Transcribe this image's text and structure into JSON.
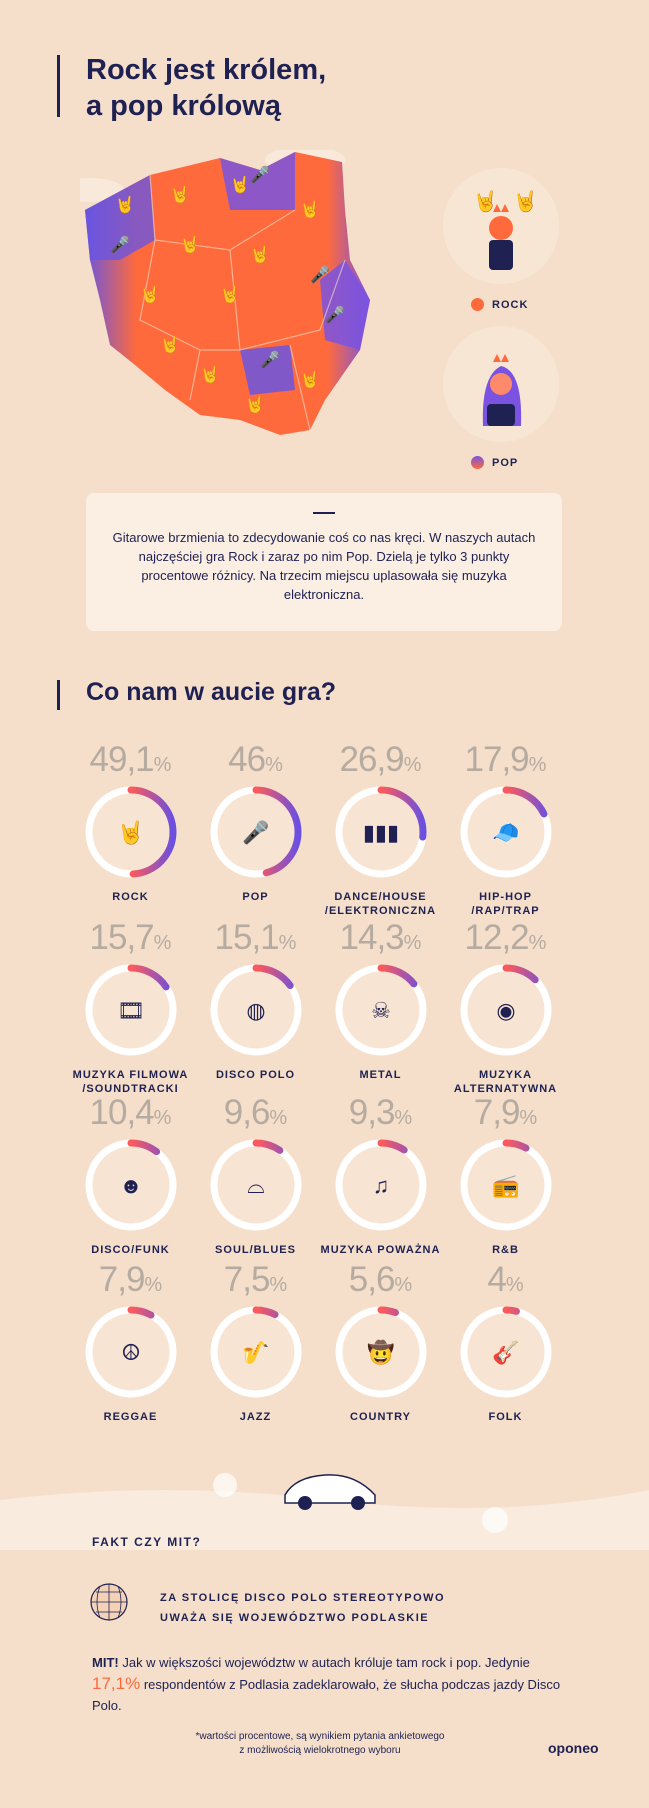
{
  "header": {
    "title_line1": "Rock jest królem,",
    "title_line2": "a pop królową"
  },
  "map_legend": [
    {
      "label": "ROCK",
      "color": "#ff6a3d",
      "icon": "rock-hands-icon"
    },
    {
      "label": "POP",
      "color": "#7a54e0",
      "icon": "pop-singer-icon"
    }
  ],
  "info_text": "Gitarowe brzmienia to zdecydowanie coś co nas kręci. W naszych autach najczęściej gra Rock i zaraz po nim Pop. Dzielą je tylko 3 punkty procentowe różnicy. Na trzecim miejscu uplasowała się muzyka elektroniczna.",
  "section_title": "Co nam w aucie gra?",
  "chart_data": {
    "type": "donut-grid",
    "unit": "%",
    "items": [
      {
        "label": "ROCK",
        "value": 49.1,
        "display": "49,1",
        "icon": "rock-hand-icon"
      },
      {
        "label": "POP",
        "value": 46,
        "display": "46",
        "icon": "microphone-icon"
      },
      {
        "label": "DANCE/HOUSE /ELEKTRONICZNA",
        "value": 26.9,
        "display": "26,9",
        "icon": "sound-wave-icon"
      },
      {
        "label": "HIP-HOP /RAP/TRAP",
        "value": 17.9,
        "display": "17,9",
        "icon": "rapper-icon"
      },
      {
        "label": "MUZYKA FILMOWA /SOUNDTRACKI",
        "value": 15.7,
        "display": "15,7",
        "icon": "film-strip-icon"
      },
      {
        "label": "DISCO POLO",
        "value": 15.1,
        "display": "15,1",
        "icon": "disco-ball-icon"
      },
      {
        "label": "METAL",
        "value": 14.3,
        "display": "14,3",
        "icon": "skull-icon"
      },
      {
        "label": "MUZYKA ALTERNATYWNA",
        "value": 12.2,
        "display": "12,2",
        "icon": "vinyl-icon"
      },
      {
        "label": "DISCO/FUNK",
        "value": 10.4,
        "display": "10,4",
        "icon": "afro-icon"
      },
      {
        "label": "SOUL/BLUES",
        "value": 9.6,
        "display": "9,6",
        "icon": "hat-icon"
      },
      {
        "label": "MUZYKA POWAŻNA",
        "value": 9.3,
        "display": "9,3",
        "icon": "piano-icon"
      },
      {
        "label": "R&B",
        "value": 7.9,
        "display": "7,9",
        "icon": "boombox-icon"
      },
      {
        "label": "REGGAE",
        "value": 7.9,
        "display": "7,9",
        "icon": "peace-icon"
      },
      {
        "label": "JAZZ",
        "value": 7.5,
        "display": "7,5",
        "icon": "saxophone-icon"
      },
      {
        "label": "COUNTRY",
        "value": 5.6,
        "display": "5,6",
        "icon": "cowboy-icon"
      },
      {
        "label": "FOLK",
        "value": 4,
        "display": "4",
        "icon": "guitar-icon"
      }
    ]
  },
  "fakt": {
    "title": "FAKT CZY MIT?",
    "claim_line1": "ZA STOLICĘ DISCO POLO STEREOTYPOWO",
    "claim_line2": "UWAŻA SIĘ WOJEWÓDZTWO PODLASKIE",
    "verdict_word": "MIT!",
    "verdict_part1": "Jak w większości województw w autach króluje tam rock i pop. Jedynie",
    "verdict_value": "17,1%",
    "verdict_part2": "respondentów z Podlasia zadeklarowało, że słucha podczas jazdy Disco Polo."
  },
  "footnote_line1": "*wartości procentowe, są wynikiem pytania ankietowego",
  "footnote_line2": "z możliwością wielokrotnego wyboru",
  "logo": "oponeo"
}
